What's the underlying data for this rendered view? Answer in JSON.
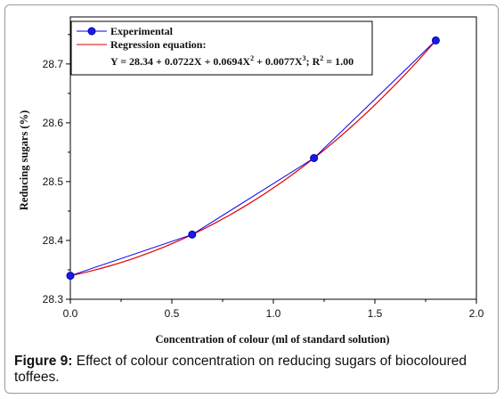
{
  "chart_data": {
    "type": "line",
    "xlabel": "Concentration of colour (ml of standard solution)",
    "ylabel": "Reducing sugars (%)",
    "xlim": [
      0.0,
      2.0
    ],
    "ylim": [
      28.3,
      28.78
    ],
    "x_ticks": [
      "0.0",
      "0.5",
      "1.0",
      "1.5",
      "2.0"
    ],
    "y_ticks": [
      "28.3",
      "28.4",
      "28.5",
      "28.6",
      "28.7"
    ],
    "x_tick_values": [
      0.0,
      0.5,
      1.0,
      1.5,
      2.0
    ],
    "y_tick_values": [
      28.3,
      28.4,
      28.5,
      28.6,
      28.7
    ],
    "legend_position": "top-left",
    "series": [
      {
        "name": "Experimental",
        "kind": "line-markers",
        "color": "#0000ee",
        "x": [
          0.0,
          0.6,
          1.2,
          1.8
        ],
        "y": [
          28.34,
          28.41,
          28.54,
          28.74
        ]
      },
      {
        "name": "Regression equation:",
        "kind": "fitted-curve",
        "color": "#e00000",
        "coefficients": [
          28.34,
          0.0722,
          0.0694,
          0.0077
        ]
      }
    ],
    "legend": {
      "experimental": "Experimental",
      "regression_title": "Regression equation:",
      "equation": {
        "lhs": "Y = 28.34 + 0.0722X + 0.0694X",
        "exp2": "2",
        "mid": " + 0.0077X",
        "exp3": "3",
        "r2_a": "; R",
        "r2_exp": "2",
        "r2_b": " = 1.00"
      }
    }
  },
  "caption": {
    "label": "Figure 9:",
    "text": " Effect of colour concentration on reducing sugars of biocoloured toffees."
  }
}
